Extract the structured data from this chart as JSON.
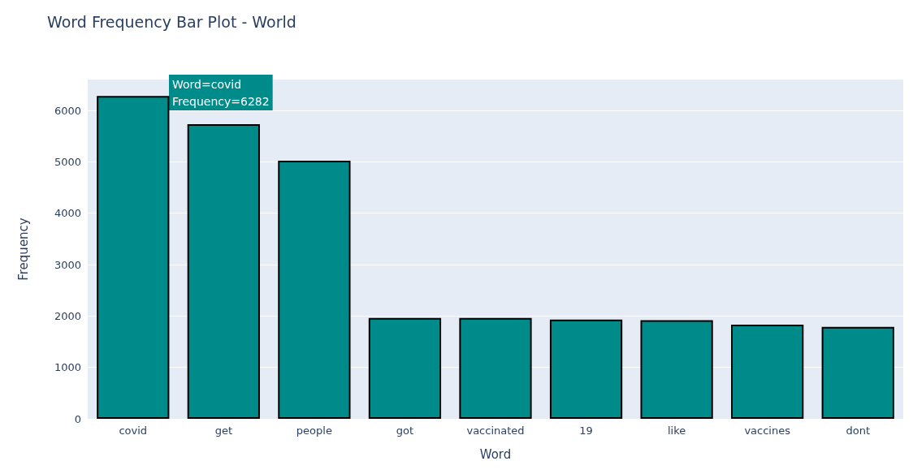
{
  "chart_data": {
    "type": "bar",
    "title": "Word Frequency Bar Plot - World",
    "xlabel": "Word",
    "ylabel": "Frequency",
    "categories": [
      "covid",
      "get",
      "people",
      "got",
      "vaccinated",
      "19",
      "like",
      "vaccines",
      "dont"
    ],
    "values": [
      6282,
      5730,
      5020,
      1960,
      1960,
      1930,
      1920,
      1830,
      1790
    ],
    "color": "#008b8b",
    "ylim": [
      0,
      6600
    ],
    "yticks": [
      0,
      1000,
      2000,
      3000,
      4000,
      5000,
      6000
    ],
    "grid": "y",
    "annotations": [
      "Word=covid\nFrequency=6282"
    ]
  }
}
